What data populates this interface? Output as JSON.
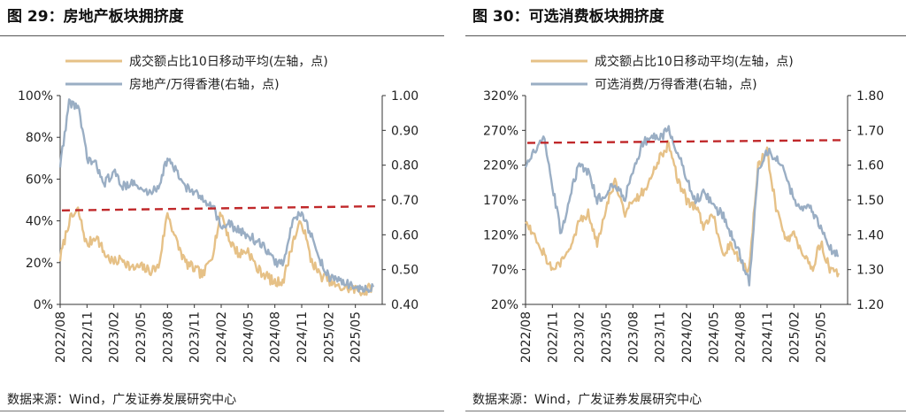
{
  "charts": [
    {
      "title": "图 29：房地产板块拥挤度",
      "source": "数据来源：Wind，广发证券发展研究中心",
      "chart_data": {
        "type": "line",
        "x_ticks": [
          "2022/08",
          "2022/11",
          "2023/02",
          "2023/05",
          "2023/08",
          "2023/11",
          "2024/02",
          "2024/05",
          "2024/08",
          "2024/11",
          "2025/02",
          "2025/05"
        ],
        "left_axis": {
          "ticks": [
            "0%",
            "20%",
            "40%",
            "60%",
            "80%",
            "100%"
          ],
          "range": [
            0,
            100
          ]
        },
        "right_axis": {
          "ticks": [
            "0.40",
            "0.50",
            "0.60",
            "0.70",
            "0.80",
            "0.90",
            "1.00"
          ],
          "range": [
            0.4,
            1.0
          ]
        },
        "series": [
          {
            "name": "成交额占比10日移动平均(左轴，点)",
            "axis": "left",
            "color": "#e6c187",
            "x": [
              "2022/08",
              "2022/09",
              "2022/10",
              "2022/11",
              "2022/12",
              "2023/01",
              "2023/02",
              "2023/03",
              "2023/04",
              "2023/05",
              "2023/06",
              "2023/07",
              "2023/08",
              "2023/09",
              "2023/10",
              "2023/11",
              "2023/12",
              "2024/01",
              "2024/02",
              "2024/03",
              "2024/04",
              "2024/05",
              "2024/06",
              "2024/07",
              "2024/08",
              "2024/09",
              "2024/10",
              "2024/11",
              "2024/12",
              "2025/01",
              "2025/02",
              "2025/03",
              "2025/04",
              "2025/05",
              "2025/06",
              "2025/07"
            ],
            "y": [
              22,
              40,
              45,
              28,
              33,
              24,
              20,
              22,
              17,
              18,
              16,
              18,
              44,
              30,
              20,
              17,
              14,
              24,
              44,
              30,
              24,
              26,
              17,
              14,
              10,
              12,
              30,
              40,
              22,
              14,
              12,
              8,
              8,
              7,
              6,
              9
            ]
          },
          {
            "name": "房地产/万得香港(右轴，点)",
            "axis": "right",
            "color": "#9aaec4",
            "x": [
              "2022/08",
              "2022/09",
              "2022/10",
              "2022/11",
              "2022/12",
              "2023/01",
              "2023/02",
              "2023/03",
              "2023/04",
              "2023/05",
              "2023/06",
              "2023/07",
              "2023/08",
              "2023/09",
              "2023/10",
              "2023/11",
              "2023/12",
              "2024/01",
              "2024/02",
              "2024/03",
              "2024/04",
              "2024/05",
              "2024/06",
              "2024/07",
              "2024/08",
              "2024/09",
              "2024/10",
              "2024/11",
              "2024/12",
              "2025/01",
              "2025/02",
              "2025/03",
              "2025/04",
              "2025/05",
              "2025/06",
              "2025/07"
            ],
            "y": [
              0.8,
              0.98,
              0.97,
              0.82,
              0.8,
              0.75,
              0.78,
              0.74,
              0.75,
              0.73,
              0.72,
              0.74,
              0.82,
              0.78,
              0.74,
              0.72,
              0.7,
              0.69,
              0.62,
              0.63,
              0.61,
              0.6,
              0.58,
              0.56,
              0.52,
              0.52,
              0.64,
              0.67,
              0.6,
              0.53,
              0.48,
              0.47,
              0.46,
              0.45,
              0.44,
              0.45
            ]
          }
        ],
        "reference_line": {
          "axis": "left",
          "y": [
            45,
            47
          ],
          "color": "#c0282a",
          "style": "dashed"
        }
      }
    },
    {
      "title": "图 30：可选消费板块拥挤度",
      "source": "数据来源：Wind，广发证券发展研究中心",
      "chart_data": {
        "type": "line",
        "x_ticks": [
          "2022/08",
          "2022/11",
          "2023/02",
          "2023/05",
          "2023/08",
          "2023/11",
          "2024/02",
          "2024/05",
          "2024/08",
          "2024/11",
          "2025/02",
          "2025/05"
        ],
        "left_axis": {
          "ticks": [
            "20%",
            "70%",
            "120%",
            "170%",
            "220%",
            "270%",
            "320%"
          ],
          "range": [
            20,
            320
          ]
        },
        "right_axis": {
          "ticks": [
            "1.20",
            "1.30",
            "1.40",
            "1.50",
            "1.60",
            "1.70",
            "1.80"
          ],
          "range": [
            1.2,
            1.8
          ]
        },
        "series": [
          {
            "name": "成交额占比10日移动平均(左轴，点)",
            "axis": "left",
            "color": "#e6c187",
            "x": [
              "2022/08",
              "2022/09",
              "2022/10",
              "2022/11",
              "2022/12",
              "2023/01",
              "2023/02",
              "2023/03",
              "2023/04",
              "2023/05",
              "2023/06",
              "2023/07",
              "2023/08",
              "2023/09",
              "2023/10",
              "2023/11",
              "2023/12",
              "2024/01",
              "2024/02",
              "2024/03",
              "2024/04",
              "2024/05",
              "2024/06",
              "2024/07",
              "2024/08",
              "2024/09",
              "2024/10",
              "2024/11",
              "2024/12",
              "2025/01",
              "2025/02",
              "2025/03",
              "2025/04",
              "2025/05",
              "2025/06",
              "2025/07"
            ],
            "y": [
              140,
              120,
              95,
              70,
              80,
              100,
              140,
              150,
              110,
              160,
              200,
              150,
              170,
              180,
              200,
              230,
              250,
              200,
              170,
              160,
              130,
              150,
              90,
              110,
              80,
              70,
              220,
              240,
              160,
              110,
              120,
              90,
              70,
              110,
              70,
              65
            ]
          },
          {
            "name": "可选消费/万得香港(右轴，点)",
            "axis": "right",
            "color": "#9aaec4",
            "x": [
              "2022/08",
              "2022/09",
              "2022/10",
              "2022/11",
              "2022/12",
              "2023/01",
              "2023/02",
              "2023/03",
              "2023/04",
              "2023/05",
              "2023/06",
              "2023/07",
              "2023/08",
              "2023/09",
              "2023/10",
              "2023/11",
              "2023/12",
              "2024/01",
              "2024/02",
              "2024/03",
              "2024/04",
              "2024/05",
              "2024/06",
              "2024/07",
              "2024/08",
              "2024/09",
              "2024/10",
              "2024/11",
              "2024/12",
              "2025/01",
              "2025/02",
              "2025/03",
              "2025/04",
              "2025/05",
              "2025/06",
              "2025/07"
            ],
            "y": [
              1.6,
              1.64,
              1.68,
              1.54,
              1.4,
              1.52,
              1.6,
              1.58,
              1.5,
              1.52,
              1.55,
              1.5,
              1.58,
              1.66,
              1.68,
              1.68,
              1.7,
              1.64,
              1.56,
              1.5,
              1.52,
              1.48,
              1.46,
              1.4,
              1.34,
              1.26,
              1.58,
              1.64,
              1.62,
              1.58,
              1.5,
              1.48,
              1.47,
              1.42,
              1.36,
              1.34
            ]
          }
        ],
        "reference_line": {
          "axis": "left",
          "y": [
            252,
            256
          ],
          "color": "#c0282a",
          "style": "dashed"
        }
      }
    }
  ]
}
